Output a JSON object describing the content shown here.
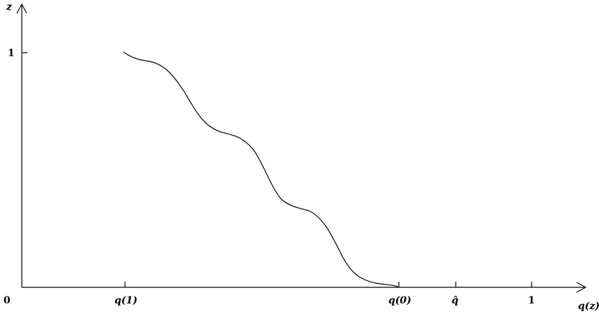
{
  "axes": {
    "y_label": "z",
    "x_label": "q(z)",
    "origin_label": "0"
  },
  "y_ticks": [
    {
      "label": "1"
    }
  ],
  "x_ticks": [
    {
      "label": "q(1)"
    },
    {
      "label": "q(0)"
    },
    {
      "label": "q̂"
    },
    {
      "label": "1"
    }
  ],
  "curve": {
    "name": "staircase-curve",
    "description_points": "smooth staircase descending from (q(1), 1) to (q(0), 0)"
  }
}
